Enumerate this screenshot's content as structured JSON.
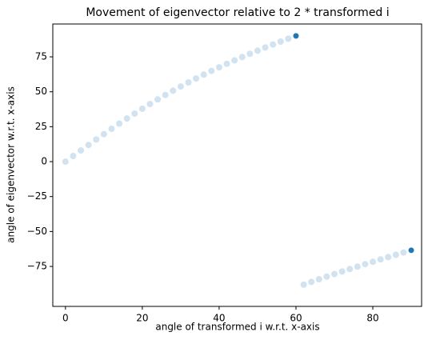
{
  "chart_data": {
    "type": "scatter",
    "title": "Movement of eigenvector relative to 2 * transformed i",
    "x_label": "angle of transformed i w.r.t. x-axis",
    "y_label": "angle of eigenvector w.r.t. x-axis",
    "xlim": [
      -3.3,
      92.7
    ],
    "ylim": [
      -103.6,
      98.5
    ],
    "xticks": [
      0,
      20,
      40,
      60,
      80
    ],
    "yticks": [
      {
        "value": -75,
        "label": "−75"
      },
      {
        "value": -50,
        "label": "−50"
      },
      {
        "value": -25,
        "label": "−25"
      },
      0,
      25,
      50,
      75
    ],
    "series": [
      {
        "color": "#c6dbec",
        "x": [
          0,
          2,
          4,
          6,
          8,
          10,
          12,
          14,
          16,
          18,
          20,
          22,
          24,
          26,
          28,
          30,
          32,
          34,
          36,
          38,
          40,
          42,
          44,
          46,
          48,
          50,
          52,
          54,
          56,
          58,
          62,
          64,
          66,
          68,
          70,
          72,
          74,
          76,
          78,
          80,
          82,
          84,
          86,
          88
        ],
        "values": [
          0,
          4.0,
          7.98,
          11.94,
          15.85,
          19.71,
          23.5,
          27.22,
          30.86,
          34.41,
          37.88,
          41.25,
          44.53,
          47.7,
          50.8,
          53.79,
          56.7,
          59.53,
          62.27,
          64.93,
          67.51,
          70.03,
          72.48,
          74.86,
          77.18,
          79.44,
          81.65,
          83.81,
          85.92,
          87.98,
          -88.02,
          -86.08,
          -84.17,
          -82.3,
          -80.46,
          -78.64,
          -76.86,
          -75.11,
          -73.38,
          -71.66,
          -69.97,
          -68.31,
          -66.67,
          -65.05
        ]
      },
      {
        "color": "#1f77b4",
        "x": [
          60,
          90
        ],
        "values": [
          90,
          -63.43
        ]
      }
    ]
  }
}
